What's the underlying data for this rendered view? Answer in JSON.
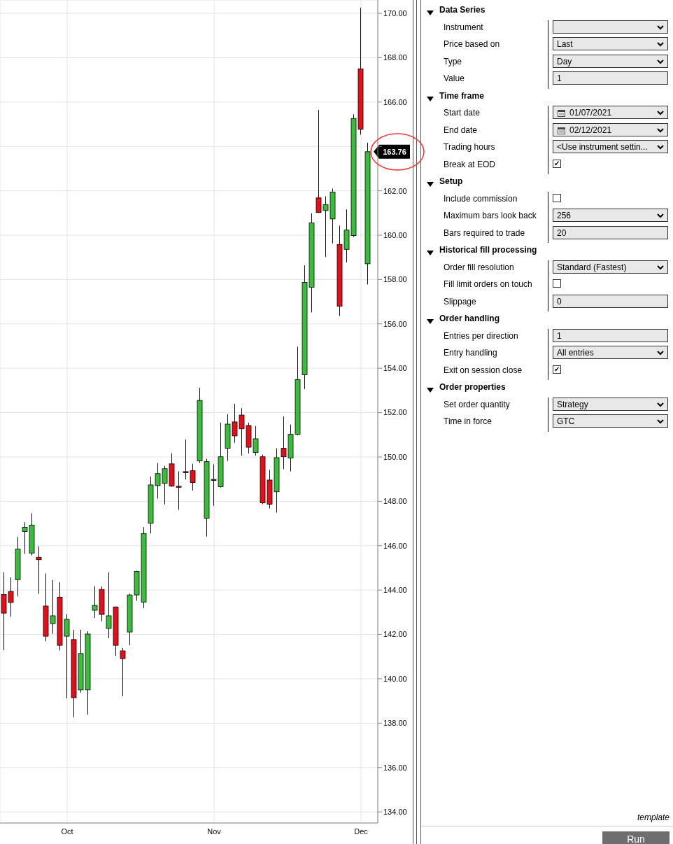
{
  "chart_data": [
    {
      "type": "candlestick",
      "categories": [
        null,
        null,
        null,
        null,
        null,
        null,
        null,
        null,
        null,
        "Oct",
        null,
        null,
        null,
        null,
        null,
        null,
        null,
        null,
        null,
        null,
        null,
        null,
        null,
        null,
        null,
        null,
        null,
        null,
        null,
        null,
        "Nov",
        null,
        null,
        null,
        null,
        null,
        null,
        null,
        null,
        null,
        null,
        null,
        null,
        null,
        null,
        null,
        null,
        null,
        null,
        null,
        null,
        "Dec",
        null
      ],
      "ohlc": [
        [
          143.8,
          144.8,
          141.29,
          142.96
        ],
        [
          143.94,
          144.57,
          142.8,
          143.44
        ],
        [
          144.47,
          146.4,
          143.71,
          145.85
        ],
        [
          146.64,
          147.06,
          145.63,
          146.83
        ],
        [
          145.67,
          147.46,
          145.56,
          146.93
        ],
        [
          145.48,
          145.96,
          143.83,
          145.37
        ],
        [
          143.28,
          144.75,
          141.69,
          141.92
        ],
        [
          142.49,
          144.45,
          142.03,
          142.84
        ],
        [
          143.68,
          144.35,
          141.28,
          141.51
        ],
        [
          141.92,
          142.91,
          139.12,
          142.68
        ],
        [
          141.77,
          142.21,
          138.27,
          139.15
        ],
        [
          139.5,
          142.21,
          139.38,
          141.14
        ],
        [
          139.5,
          142.14,
          138.39,
          142.02
        ],
        [
          143.09,
          144.18,
          142.74,
          143.31
        ],
        [
          144.03,
          144.16,
          142.59,
          142.9
        ],
        [
          142.27,
          144.79,
          141.83,
          142.84
        ],
        [
          143.24,
          143.26,
          141.04,
          141.51
        ],
        [
          141.26,
          141.39,
          139.22,
          140.91
        ],
        [
          142.11,
          143.84,
          141.51,
          143.78
        ],
        [
          143.78,
          144.87,
          143.52,
          144.84
        ],
        [
          143.46,
          146.84,
          143.19,
          146.55
        ],
        [
          147.01,
          149.12,
          146.55,
          148.74
        ],
        [
          148.71,
          149.73,
          148.12,
          149.25
        ],
        [
          148.81,
          149.6,
          147.86,
          149.47
        ],
        [
          149.69,
          150.17,
          148.65,
          148.69
        ],
        [
          148.68,
          149.35,
          147.62,
          148.64
        ],
        [
          149.34,
          150.79,
          148.99,
          149.32
        ],
        [
          149.38,
          149.69,
          148.49,
          148.85
        ],
        [
          149.82,
          153.12,
          149.73,
          152.55
        ],
        [
          147.24,
          149.92,
          146.41,
          149.79
        ],
        [
          148.99,
          149.67,
          147.8,
          148.96
        ],
        [
          148.66,
          151.55,
          148.62,
          150.01
        ],
        [
          150.39,
          151.93,
          149.82,
          151.48
        ],
        [
          151.58,
          152.4,
          150.64,
          150.95
        ],
        [
          151.89,
          152.2,
          150.06,
          151.27
        ],
        [
          151.42,
          151.55,
          150.16,
          150.44
        ],
        [
          150.2,
          151.4,
          150.06,
          150.82
        ],
        [
          150.01,
          150.11,
          147.87,
          147.93
        ],
        [
          148.96,
          149.42,
          147.68,
          147.87
        ],
        [
          148.43,
          150.39,
          147.49,
          149.97
        ],
        [
          150.39,
          151.83,
          149.45,
          150.01
        ],
        [
          149.95,
          151.46,
          149.35,
          151.02
        ],
        [
          151.02,
          154.97,
          150.98,
          153.49
        ],
        [
          153.71,
          158.64,
          153.06,
          157.87
        ],
        [
          157.65,
          160.99,
          156.52,
          160.55
        ],
        [
          161.68,
          165.65,
          161.0,
          161.02
        ],
        [
          161.11,
          161.75,
          159.01,
          161.38
        ],
        [
          160.73,
          162.1,
          159.63,
          161.94
        ],
        [
          159.58,
          160.43,
          156.36,
          156.8
        ],
        [
          159.36,
          161.16,
          158.77,
          160.23
        ],
        [
          159.98,
          165.45,
          159.92,
          165.26
        ],
        [
          167.49,
          170.25,
          164.53,
          164.77
        ],
        [
          158.71,
          164.17,
          157.78,
          163.76
        ]
      ],
      "colors": [
        "#e3101b",
        "#e3101b",
        "#3dbb3d",
        "#3dbb3d",
        "#3dbb3d",
        "#e3101b",
        "#e3101b",
        "#3dbb3d",
        "#e3101b",
        "#3dbb3d",
        "#e3101b",
        "#3dbb3d",
        "#3dbb3d",
        "#3dbb3d",
        "#e3101b",
        "#3dbb3d",
        "#e3101b",
        "#e3101b",
        "#3dbb3d",
        "#3dbb3d",
        "#3dbb3d",
        "#3dbb3d",
        "#3dbb3d",
        "#3dbb3d",
        "#e3101b",
        "#e3101b",
        "#e3101b",
        "#e3101b",
        "#3dbb3d",
        "#3dbb3d",
        "#e3101b",
        "#3dbb3d",
        "#3dbb3d",
        "#e3101b",
        "#e3101b",
        "#e3101b",
        "#3dbb3d",
        "#e3101b",
        "#e3101b",
        "#3dbb3d",
        "#e3101b",
        "#3dbb3d",
        "#3dbb3d",
        "#3dbb3d",
        "#3dbb3d",
        "#e3101b",
        "#3dbb3d",
        "#3dbb3d",
        "#e3101b",
        "#3dbb3d",
        "#3dbb3d",
        "#e3101b",
        "#3dbb3d"
      ],
      "ylim": [
        133.5,
        170.6
      ],
      "yticks": [
        {
          "value": 134,
          "label": "134.00"
        },
        {
          "value": 136,
          "label": "136.00"
        },
        {
          "value": 138,
          "label": "138.00"
        },
        {
          "value": 140,
          "label": "140.00"
        },
        {
          "value": 142,
          "label": "142.00"
        },
        {
          "value": 144,
          "label": "144.00"
        },
        {
          "value": 146,
          "label": "146.00"
        },
        {
          "value": 148,
          "label": "148.00"
        },
        {
          "value": 150,
          "label": "150.00"
        },
        {
          "value": 152,
          "label": "152.00"
        },
        {
          "value": 154,
          "label": "154.00"
        },
        {
          "value": 156,
          "label": "156.00"
        },
        {
          "value": 158,
          "label": "158.00"
        },
        {
          "value": 160,
          "label": "160.00"
        },
        {
          "value": 162,
          "label": "162.00"
        },
        {
          "value": 164,
          "label": null
        },
        {
          "value": 166,
          "label": "166.00"
        },
        {
          "value": 168,
          "label": "168.00"
        },
        {
          "value": 170,
          "label": "170.00"
        }
      ],
      "grid": true,
      "annotations": [
        "163.76"
      ]
    },
    {
      "type": "other",
      "title": "Data Series",
      "categories": [
        "Instrument",
        "Price based on",
        "Type",
        "Value"
      ],
      "value_labels": [
        null,
        "Last",
        "Day",
        "1"
      ]
    },
    {
      "type": "other",
      "title": "Time frame",
      "categories": [
        "Start date",
        "End date",
        "Trading hours",
        "Break at EOD"
      ],
      "value_labels": [
        "01/07/2021",
        "02/12/2021",
        "<Use instrument settin...",
        "✔"
      ]
    },
    {
      "type": "other",
      "title": "Setup",
      "categories": [
        "Include commission",
        "Maximum bars look back",
        "Bars required to trade"
      ],
      "value_labels": [
        null,
        "256",
        "20"
      ]
    },
    {
      "type": "other",
      "title": "Historical fill processing",
      "categories": [
        "Order fill resolution",
        "Fill limit orders on touch",
        "Slippage"
      ],
      "value_labels": [
        "Standard (Fastest)",
        null,
        "0"
      ]
    },
    {
      "type": "other",
      "title": "Order handling",
      "categories": [
        "Entries per direction",
        "Entry handling",
        "Exit on session close"
      ],
      "value_labels": [
        "1",
        "All entries",
        "✔"
      ]
    },
    {
      "type": "other",
      "title": "Order properties",
      "categories": [
        "Set order quantity",
        "Time in force"
      ],
      "value_labels": [
        "Strategy",
        "GTC"
      ],
      "annotations": [
        "template",
        "Run"
      ]
    }
  ]
}
